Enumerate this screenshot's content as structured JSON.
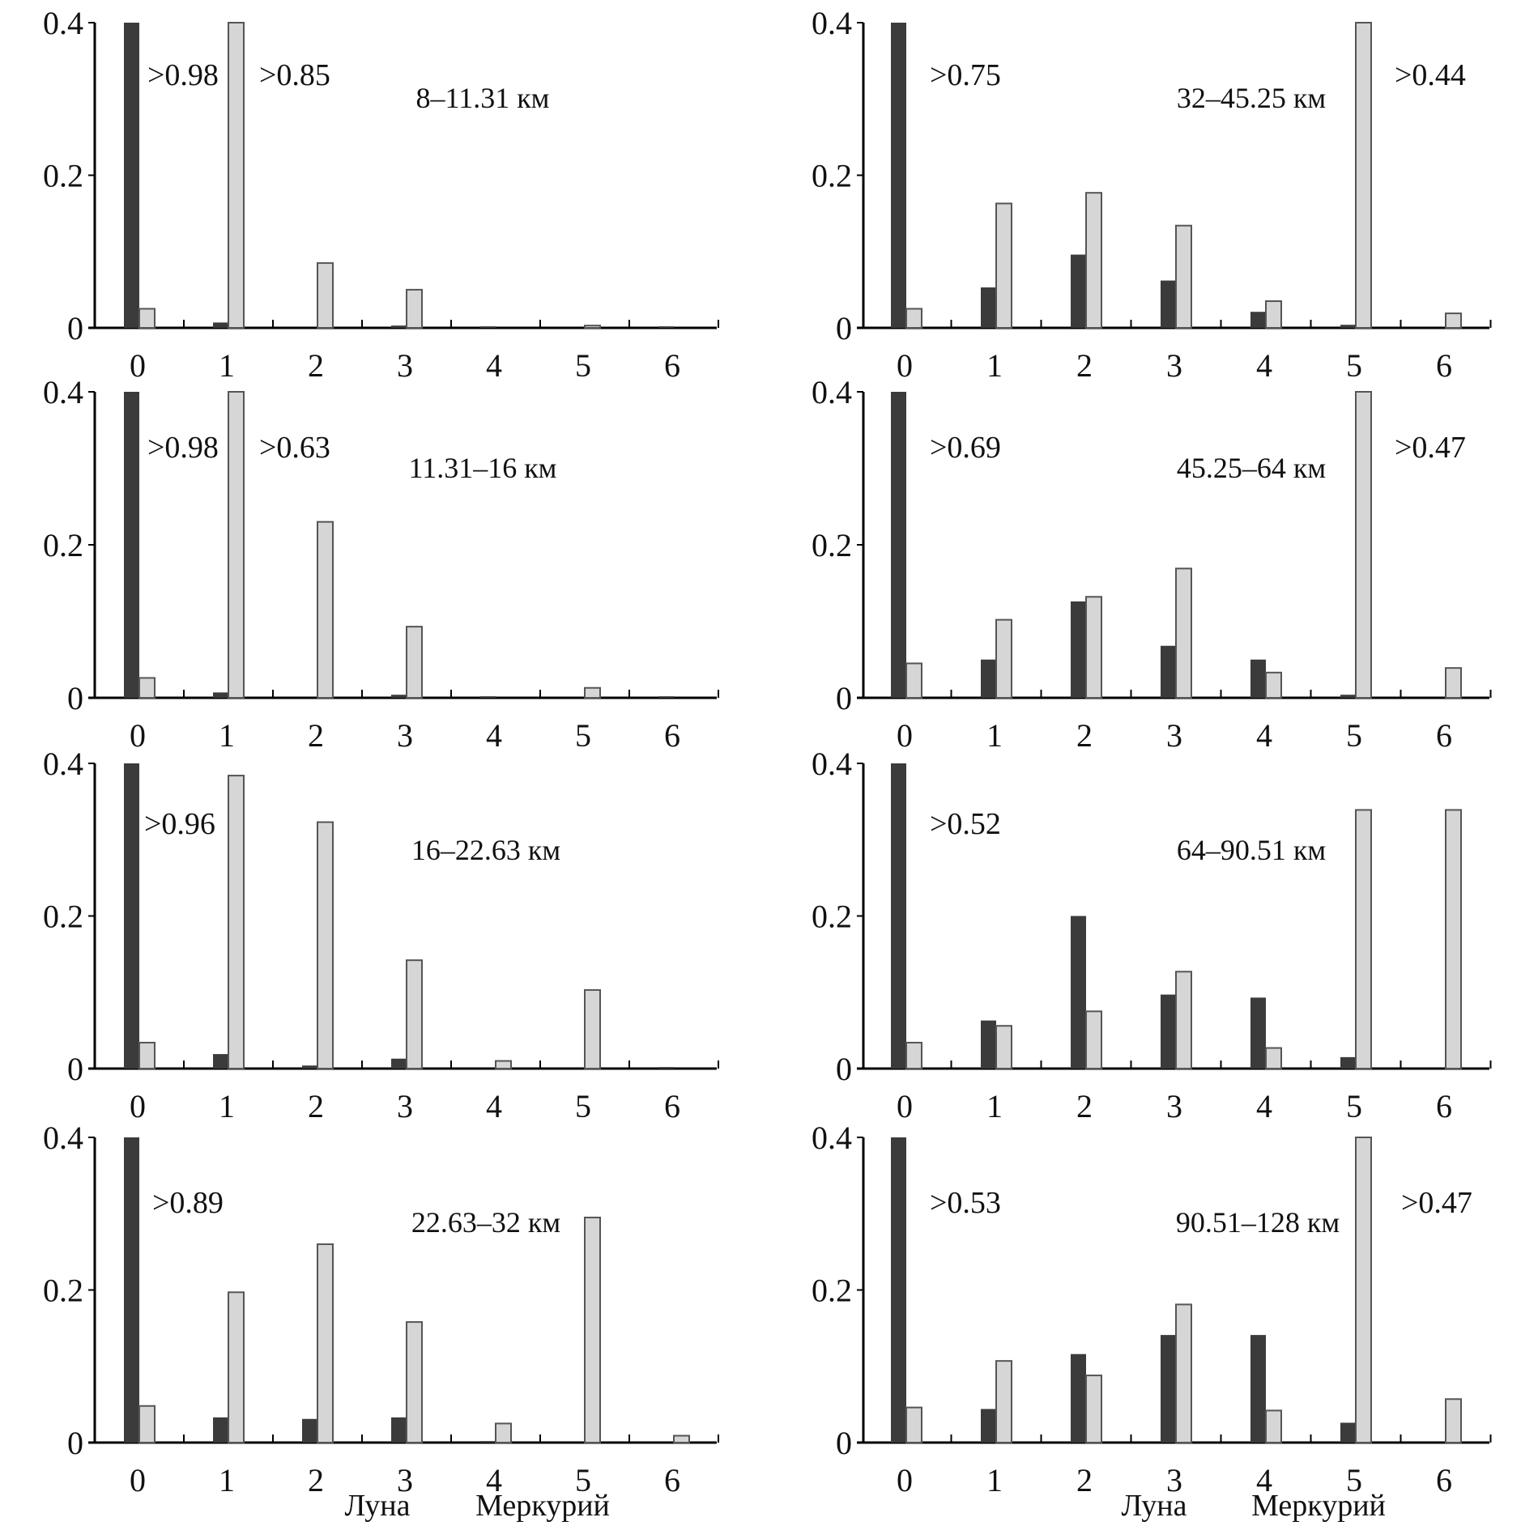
{
  "chart_data": [
    {
      "type": "bar",
      "title": "8–11.31 км",
      "categories": [
        "0",
        "1",
        "2",
        "3",
        "4",
        "5",
        "6"
      ],
      "ylim": [
        0,
        0.4
      ],
      "yticks": [
        "0",
        "0.2",
        "0.4"
      ],
      "series": [
        {
          "name": "Луна",
          "color": "#3b3b3b",
          "values": [
            0.98,
            0.007,
            0,
            0.003,
            0.002,
            0,
            0.002
          ]
        },
        {
          "name": "Меркурий",
          "color": "#d6d6d6",
          "values": [
            0.025,
            0.85,
            0.085,
            0.05,
            0,
            0.003,
            0
          ]
        }
      ],
      "annotations": [
        {
          "series": 0,
          "category": 0,
          "text": ">0.98"
        },
        {
          "series": 1,
          "category": 1,
          "text": ">0.85"
        }
      ]
    },
    {
      "type": "bar",
      "title": "11.31–16 км",
      "categories": [
        "0",
        "1",
        "2",
        "3",
        "4",
        "5",
        "6"
      ],
      "ylim": [
        0,
        0.4
      ],
      "yticks": [
        "0",
        "0.2",
        "0.4"
      ],
      "series": [
        {
          "name": "Луна",
          "color": "#3b3b3b",
          "values": [
            0.98,
            0.007,
            0,
            0.004,
            0.002,
            0,
            0.002
          ]
        },
        {
          "name": "Меркурий",
          "color": "#d6d6d6",
          "values": [
            0.026,
            0.63,
            0.23,
            0.093,
            0,
            0.013,
            0
          ]
        }
      ],
      "annotations": [
        {
          "series": 0,
          "category": 0,
          "text": ">0.98"
        },
        {
          "series": 1,
          "category": 1,
          "text": ">0.63"
        }
      ]
    },
    {
      "type": "bar",
      "title": "16–22.63 км",
      "categories": [
        "0",
        "1",
        "2",
        "3",
        "4",
        "5",
        "6"
      ],
      "ylim": [
        0,
        0.4
      ],
      "yticks": [
        "0",
        "0.2",
        "0.4"
      ],
      "series": [
        {
          "name": "Луна",
          "color": "#3b3b3b",
          "values": [
            0.96,
            0.019,
            0.004,
            0.013,
            0,
            0,
            0.002
          ]
        },
        {
          "name": "Меркурий",
          "color": "#d6d6d6",
          "values": [
            0.034,
            0.384,
            0.323,
            0.142,
            0.01,
            0.103,
            0
          ]
        }
      ],
      "annotations": [
        {
          "series": 0,
          "category": 0,
          "text": ">0.96"
        }
      ]
    },
    {
      "type": "bar",
      "title": "22.63–32 км",
      "categories": [
        "0",
        "1",
        "2",
        "3",
        "4",
        "5",
        "6"
      ],
      "ylim": [
        0,
        0.4
      ],
      "yticks": [
        "0",
        "0.2",
        "0.4"
      ],
      "series": [
        {
          "name": "Луна",
          "color": "#3b3b3b",
          "values": [
            0.89,
            0.033,
            0.031,
            0.033,
            0.002,
            0,
            0
          ]
        },
        {
          "name": "Меркурий",
          "color": "#d6d6d6",
          "values": [
            0.048,
            0.197,
            0.26,
            0.158,
            0.025,
            0.295,
            0.009
          ]
        }
      ],
      "annotations": [
        {
          "series": 0,
          "category": 0,
          "text": ">0.89"
        }
      ]
    },
    {
      "type": "bar",
      "title": "32–45.25 км",
      "categories": [
        "0",
        "1",
        "2",
        "3",
        "4",
        "5",
        "6"
      ],
      "ylim": [
        0,
        0.4
      ],
      "yticks": [
        "0",
        "0.2",
        "0.4"
      ],
      "series": [
        {
          "name": "Луна",
          "color": "#3b3b3b",
          "values": [
            0.75,
            0.053,
            0.096,
            0.062,
            0.021,
            0.004,
            0
          ]
        },
        {
          "name": "Меркурий",
          "color": "#d6d6d6",
          "values": [
            0.025,
            0.163,
            0.177,
            0.134,
            0.035,
            0.44,
            0.019
          ]
        }
      ],
      "annotations": [
        {
          "series": 0,
          "category": 0,
          "text": ">0.75"
        },
        {
          "series": 1,
          "category": 5,
          "text": ">0.44"
        }
      ]
    },
    {
      "type": "bar",
      "title": "45.25–64 км",
      "categories": [
        "0",
        "1",
        "2",
        "3",
        "4",
        "5",
        "6"
      ],
      "ylim": [
        0,
        0.4
      ],
      "yticks": [
        "0",
        "0.2",
        "0.4"
      ],
      "series": [
        {
          "name": "Луна",
          "color": "#3b3b3b",
          "values": [
            0.69,
            0.05,
            0.126,
            0.068,
            0.05,
            0.004,
            0
          ]
        },
        {
          "name": "Меркурий",
          "color": "#d6d6d6",
          "values": [
            0.045,
            0.102,
            0.132,
            0.169,
            0.033,
            0.47,
            0.039
          ]
        }
      ],
      "annotations": [
        {
          "series": 0,
          "category": 0,
          "text": ">0.69"
        },
        {
          "series": 1,
          "category": 5,
          "text": ">0.47"
        }
      ]
    },
    {
      "type": "bar",
      "title": "64–90.51 км",
      "categories": [
        "0",
        "1",
        "2",
        "3",
        "4",
        "5",
        "6"
      ],
      "ylim": [
        0,
        0.4
      ],
      "yticks": [
        "0",
        "0.2",
        "0.4"
      ],
      "series": [
        {
          "name": "Луна",
          "color": "#3b3b3b",
          "values": [
            0.52,
            0.063,
            0.2,
            0.097,
            0.093,
            0.015,
            0
          ]
        },
        {
          "name": "Меркурий",
          "color": "#d6d6d6",
          "values": [
            0.034,
            0.056,
            0.075,
            0.127,
            0.027,
            0.339,
            0.339
          ]
        }
      ],
      "annotations": [
        {
          "series": 0,
          "category": 0,
          "text": ">0.52"
        }
      ]
    },
    {
      "type": "bar",
      "title": "90.51–128 км",
      "categories": [
        "0",
        "1",
        "2",
        "3",
        "4",
        "5",
        "6"
      ],
      "ylim": [
        0,
        0.4
      ],
      "yticks": [
        "0",
        "0.2",
        "0.4"
      ],
      "series": [
        {
          "name": "Луна",
          "color": "#3b3b3b",
          "values": [
            0.53,
            0.044,
            0.116,
            0.141,
            0.141,
            0.026,
            0
          ]
        },
        {
          "name": "Меркурий",
          "color": "#d6d6d6",
          "values": [
            0.046,
            0.107,
            0.088,
            0.181,
            0.042,
            0.47,
            0.057
          ]
        }
      ],
      "annotations": [
        {
          "series": 0,
          "category": 0,
          "text": ">0.53"
        },
        {
          "series": 1,
          "category": 5,
          "text": ">0.47"
        }
      ]
    }
  ],
  "legend": {
    "labels": [
      "Луна",
      "Меркурий"
    ],
    "placement": "bottom"
  }
}
